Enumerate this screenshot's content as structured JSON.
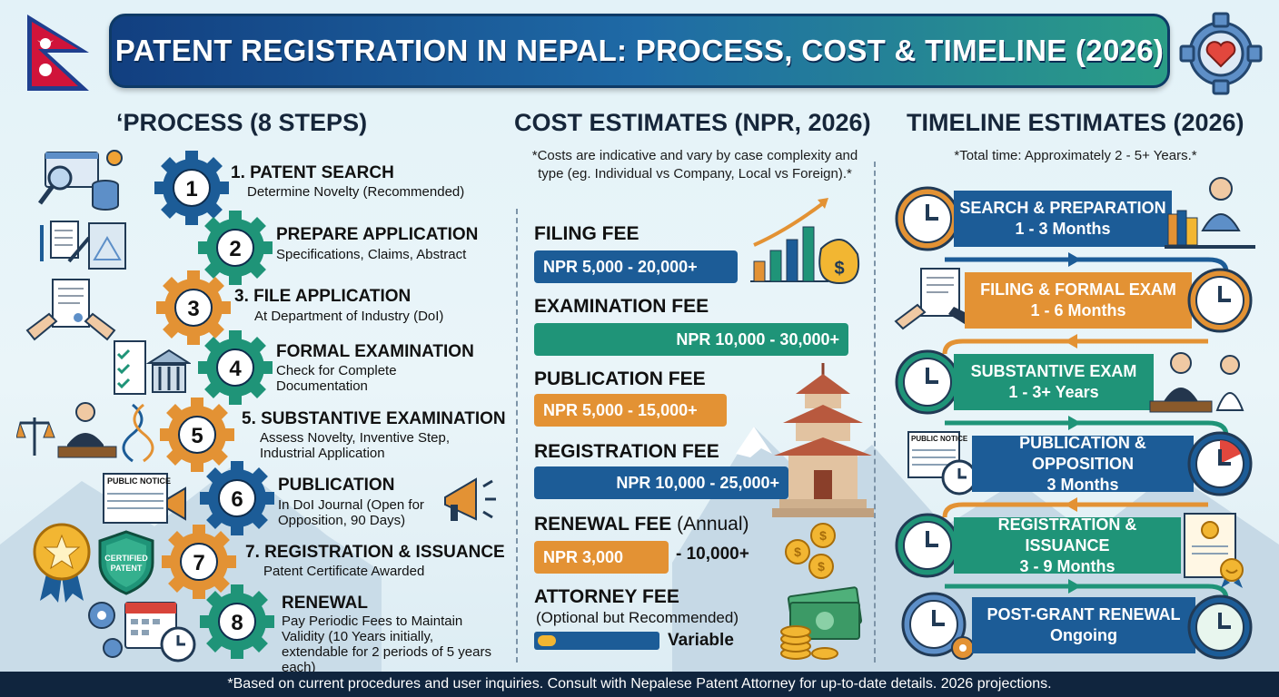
{
  "title": "PATENT REGISTRATION IN NEPAL: PROCESS, COST & TIMELINE (2026)",
  "colors": {
    "navy": "#1c5c97",
    "green": "#1f9478",
    "orange": "#e39234",
    "dark": "#10253e"
  },
  "process": {
    "heading": "‘PROCESS (8 STEPS)",
    "steps": [
      {
        "num": "1",
        "title": "1. PATENT SEARCH",
        "sub": "Determine Novelty (Recommended)",
        "icon": "search-database-icon"
      },
      {
        "num": "2",
        "title": "PREPARE APPLICATION",
        "sub": "Specifications, Claims, Abstract",
        "icon": "document-blueprint-icon"
      },
      {
        "num": "3",
        "title": "3. FILE APPLICATION",
        "sub": "At Department of Industry (DoI)",
        "icon": "handover-document-icon"
      },
      {
        "num": "4",
        "title": "FORMAL EXAMINATION",
        "sub": "Check for Complete Documentation",
        "icon": "checklist-building-icon"
      },
      {
        "num": "5",
        "title": "5. SUBSTANTIVE EXAMINATION",
        "sub": "Assess Novelty, Inventive Step, Industrial Application",
        "icon": "examiner-dna-icon"
      },
      {
        "num": "6",
        "title": "PUBLICATION",
        "sub": "In DoI Journal (Open for Opposition, 90 Days)",
        "icon": "public-notice-icon",
        "badge": "PUBLIC NOTICE"
      },
      {
        "num": "7",
        "title": "7. REGISTRATION & ISSUANCE",
        "sub": "Patent Certificate Awarded",
        "icon": "certified-badge-icon",
        "badge": "CERTIFIED PATENT"
      },
      {
        "num": "8",
        "title": "RENEWAL",
        "sub": "Pay Periodic Fees to Maintain Validity (10 Years initially, extendable for 2 periods of 5 years each)",
        "icon": "calendar-clock-icon"
      }
    ]
  },
  "cost": {
    "heading": "COST ESTIMATES (NPR, 2026)",
    "note": "*Costs are indicative and vary by case complexity and type (eg. Individual vs Company, Local vs Foreign).*",
    "fees": [
      {
        "label": "FILING FEE",
        "value": "NPR 5,000 - 20,000+",
        "color": "navy"
      },
      {
        "label": "EXAMINATION FEE",
        "value": "NPR 10,000 - 30,000+",
        "color": "green"
      },
      {
        "label": "PUBLICATION FEE",
        "value": "NPR 5,000 - 15,000+",
        "color": "orange"
      },
      {
        "label": "REGISTRATION FEE",
        "value": "NPR 10,000 - 25,000+",
        "color": "navy"
      },
      {
        "label": "RENEWAL FEE",
        "label_sub": "(Annual)",
        "value": "NPR 3,000",
        "value_suffix": "- 10,000+",
        "color": "orange"
      },
      {
        "label": "ATTORNEY FEE",
        "label_sub": "(Optional but Recommended)",
        "value": "Variable",
        "color": "navy"
      }
    ]
  },
  "timeline": {
    "heading": "TIMELINE ESTIMATES (2026)",
    "note": "*Total time: Approximately 2 - 5+ Years.*",
    "stages": [
      {
        "title": "SEARCH & PREPARATION",
        "dur": "1 - 3 Months",
        "color": "navy"
      },
      {
        "title": "FILING & FORMAL EXAM",
        "dur": "1 - 6 Months",
        "color": "orange"
      },
      {
        "title": "SUBSTANTIVE EXAM",
        "dur": "1 - 3+ Years",
        "color": "green"
      },
      {
        "title": "PUBLICATION & OPPOSITION",
        "dur": "3 Months",
        "color": "navy",
        "badge": "PUBLIC NOTICE"
      },
      {
        "title": "REGISTRATION & ISSUANCE",
        "dur": "3 - 9 Months",
        "color": "green"
      },
      {
        "title": "POST-GRANT RENEWAL",
        "dur": "Ongoing",
        "color": "navy"
      }
    ]
  },
  "footer": "*Based on current procedures and user inquiries. Consult with Nepalese Patent Attorney for up-to-date details. 2026 projections."
}
